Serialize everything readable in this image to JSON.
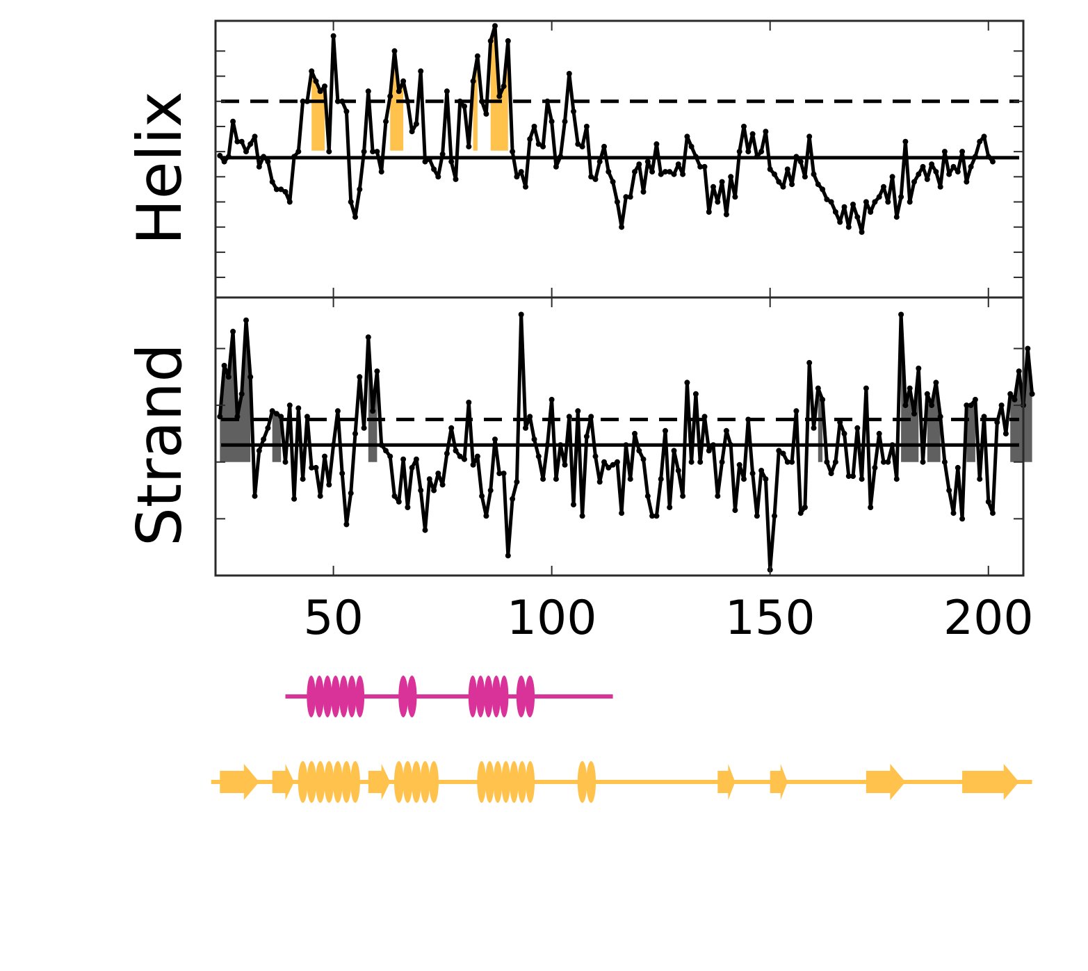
{
  "colors": {
    "helix_fill": "#FFC34D",
    "strand_fill": "#606060",
    "line": "#000000",
    "track_magenta": "#D93399",
    "track_orange": "#FFC34D",
    "frame": "#2a2a2a"
  },
  "chart_data": {
    "type": "line",
    "x_range": [
      23,
      208
    ],
    "x_ticks": [
      50,
      100,
      150,
      200
    ],
    "x_tick_labels": [
      "50",
      "100",
      "150",
      "200"
    ],
    "grid": false,
    "panels": [
      {
        "label": "Helix",
        "fill_color_key": "helix_fill",
        "ylim": [
          -2.9,
          2.6
        ],
        "baseline": -0.12,
        "threshold": 1.0,
        "fill_base": 0.02,
        "x_start": 24,
        "y_ticks": [
          -2.5,
          -2.0,
          -1.5,
          -1.0,
          -0.5,
          0.0,
          0.5,
          1.0,
          1.5,
          2.0
        ],
        "values": [
          -0.08,
          -0.2,
          -0.1,
          0.6,
          0.2,
          0.2,
          0.0,
          0.15,
          0.3,
          -0.3,
          -0.1,
          -0.2,
          -0.6,
          -0.75,
          -0.75,
          -0.8,
          -1.0,
          -0.1,
          0.0,
          1.0,
          1.0,
          1.6,
          1.4,
          1.2,
          1.3,
          0.0,
          2.3,
          1.0,
          1.0,
          0.8,
          -1.0,
          -1.3,
          -0.75,
          0.0,
          1.2,
          0.0,
          0.0,
          -0.4,
          0.6,
          1.1,
          2.0,
          1.2,
          1.4,
          1.0,
          0.4,
          0.55,
          1.6,
          -0.2,
          -0.15,
          -0.35,
          -0.5,
          -0.05,
          1.2,
          -0.2,
          -0.55,
          1.0,
          0.9,
          0.1,
          1.4,
          1.9,
          1.0,
          0.75,
          2.2,
          2.5,
          1.1,
          1.3,
          2.2,
          0.0,
          -0.5,
          -0.4,
          -0.7,
          0.25,
          0.5,
          0.15,
          0.1,
          1.0,
          0.6,
          -0.3,
          -0.1,
          0.6,
          1.55,
          0.8,
          0.15,
          0.1,
          0.5,
          -0.5,
          -0.55,
          -0.2,
          0.1,
          -0.4,
          -0.6,
          -1.0,
          -1.5,
          -0.9,
          -0.9,
          -0.4,
          -0.25,
          -0.8,
          -0.2,
          -0.4,
          0.15,
          -0.45,
          -0.4,
          -0.4,
          -0.45,
          -0.25,
          -0.45,
          0.3,
          0.1,
          -0.1,
          -0.3,
          -0.3,
          -1.2,
          -0.7,
          -1.0,
          -0.6,
          -1.25,
          -0.5,
          -0.9,
          0.0,
          0.5,
          0.0,
          0.35,
          -0.1,
          0.0,
          0.4,
          -0.35,
          -0.45,
          -0.6,
          -0.7,
          -0.35,
          -0.65,
          -0.1,
          -0.2,
          -0.5,
          0.3,
          -0.45,
          -0.65,
          -0.75,
          -0.95,
          -1.0,
          -1.2,
          -1.4,
          -1.1,
          -1.5,
          -1.05,
          -1.3,
          -1.6,
          -1.0,
          -1.2,
          -1.0,
          -0.9,
          -0.7,
          -1.0,
          -0.5,
          -1.3,
          -0.9,
          0.2,
          -1.0,
          -0.6,
          -0.45,
          -0.3,
          -0.55,
          -0.25,
          -0.4,
          -0.7,
          0.0,
          -0.45,
          -0.3,
          -0.4,
          0.0,
          -0.6,
          -0.3,
          -0.1,
          0.2,
          0.3,
          -0.1,
          -0.2
        ]
      },
      {
        "label": "Strand",
        "fill_color_key": "strand_fill",
        "ylim": [
          -2.0,
          2.9
        ],
        "baseline": 0.3,
        "threshold": 0.75,
        "fill_base": 0.0,
        "x_start": 24,
        "y_ticks": [
          -1.0,
          0.0,
          1.0,
          2.0
        ],
        "values": [
          0.8,
          1.7,
          1.5,
          2.3,
          0.8,
          1.2,
          2.5,
          1.5,
          -0.6,
          0.2,
          0.4,
          0.6,
          0.9,
          0.85,
          0.8,
          0.0,
          1.0,
          -0.65,
          0.95,
          -0.3,
          0.8,
          -0.1,
          -0.1,
          -0.6,
          0.1,
          -0.4,
          0.3,
          0.9,
          -0.2,
          -1.1,
          -0.55,
          0.5,
          1.5,
          0.6,
          2.2,
          0.9,
          1.6,
          0.3,
          0.2,
          0.1,
          -0.6,
          -0.7,
          0.05,
          -0.8,
          -0.1,
          0.05,
          -0.5,
          -1.2,
          -0.3,
          -0.5,
          -0.2,
          -0.4,
          0.15,
          0.6,
          0.2,
          0.1,
          0.05,
          1.05,
          -0.05,
          0.1,
          -0.6,
          -0.95,
          -0.5,
          0.4,
          -0.2,
          -0.2,
          -1.65,
          -0.65,
          -0.35,
          2.6,
          0.6,
          0.8,
          0.4,
          0.1,
          -0.3,
          0.3,
          1.1,
          -0.3,
          0.3,
          -0.05,
          0.8,
          -0.75,
          0.9,
          -0.95,
          0.45,
          0.8,
          0.1,
          -0.35,
          0.0,
          -0.1,
          -0.05,
          0.0,
          -0.9,
          0.3,
          -0.3,
          0.5,
          0.2,
          0.05,
          -0.6,
          -0.95,
          -0.95,
          -0.3,
          0.55,
          -0.8,
          0.2,
          -0.15,
          -0.6,
          1.4,
          0.0,
          1.2,
          0.0,
          0.8,
          0.2,
          0.3,
          -0.6,
          0.0,
          0.55,
          0.3,
          -0.85,
          -0.05,
          -0.3,
          0.75,
          -0.2,
          -0.95,
          -0.15,
          -0.3,
          -1.9,
          -0.95,
          0.2,
          0.15,
          0.0,
          0.0,
          0.9,
          -0.9,
          -0.8,
          1.75,
          0.6,
          1.3,
          1.1,
          0.0,
          -0.2,
          0.0,
          0.7,
          0.5,
          -0.25,
          -0.25,
          0.6,
          -0.3,
          1.3,
          -0.8,
          -0.1,
          0.5,
          0.0,
          0.0,
          0.3,
          -0.3,
          2.6,
          1.0,
          1.3,
          0.85,
          1.65,
          0.0,
          1.2,
          1.0,
          1.4,
          0.8,
          0.0,
          -0.5,
          -0.9,
          -0.1,
          -1.0,
          1.0,
          1.0,
          1.1,
          -0.3,
          0.8,
          -0.7,
          -0.9,
          0.7,
          1.0,
          0.5,
          1.2,
          1.1,
          1.6,
          1.0,
          2.0,
          1.2
        ]
      }
    ],
    "tracks": [
      {
        "color_key": "track_magenta",
        "x_range": [
          39,
          114
        ],
        "elements": [
          {
            "type": "helix",
            "start": 44,
            "end": 57
          },
          {
            "type": "helix",
            "start": 65,
            "end": 69
          },
          {
            "type": "helix",
            "start": 81,
            "end": 90
          },
          {
            "type": "helix",
            "start": 92,
            "end": 96
          }
        ]
      },
      {
        "color_key": "track_orange",
        "x_range": [
          22,
          210
        ],
        "elements": [
          {
            "type": "strand",
            "start": 24,
            "end": 33
          },
          {
            "type": "strand",
            "start": 36,
            "end": 41
          },
          {
            "type": "helix",
            "start": 42,
            "end": 56
          },
          {
            "type": "strand",
            "start": 58,
            "end": 63
          },
          {
            "type": "helix",
            "start": 64,
            "end": 74
          },
          {
            "type": "helix",
            "start": 83,
            "end": 96
          },
          {
            "type": "helix",
            "start": 106,
            "end": 110
          },
          {
            "type": "strand",
            "start": 138,
            "end": 142
          },
          {
            "type": "strand",
            "start": 150,
            "end": 154
          },
          {
            "type": "strand",
            "start": 172,
            "end": 181
          },
          {
            "type": "strand",
            "start": 194,
            "end": 207
          }
        ]
      }
    ]
  }
}
